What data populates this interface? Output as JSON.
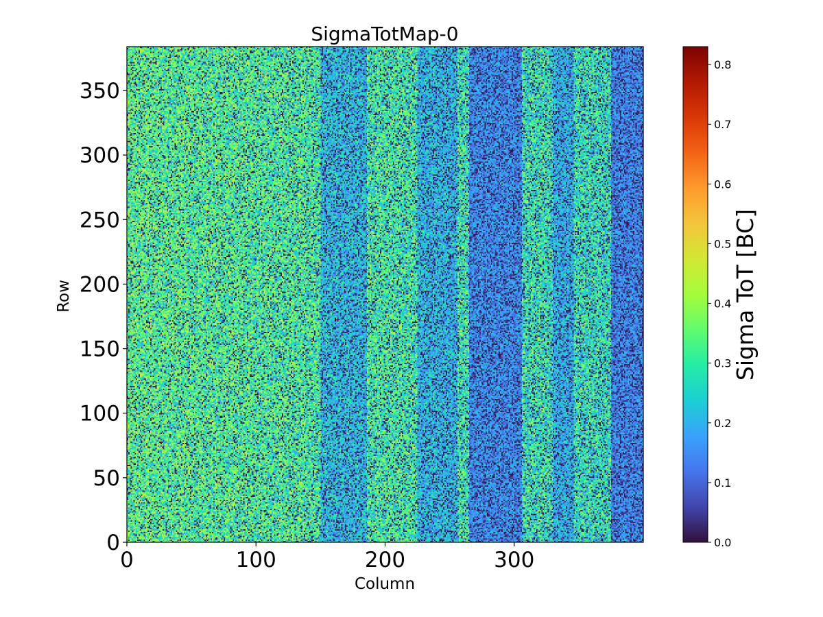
{
  "chart_data": {
    "type": "heatmap",
    "title": "SigmaTotMap-0",
    "xlabel": "Column",
    "ylabel": "Row",
    "xlim": [
      0,
      400
    ],
    "ylim": [
      0,
      384
    ],
    "x_ticks": [
      0,
      100,
      200,
      300
    ],
    "y_ticks": [
      0,
      50,
      100,
      150,
      200,
      250,
      300,
      350
    ],
    "colorbar": {
      "label": "Sigma ToT [BC]",
      "range": [
        0.0,
        0.83
      ],
      "ticks": [
        "0.0",
        "0.1",
        "0.2",
        "0.3",
        "0.4",
        "0.5",
        "0.6",
        "0.7",
        "0.8"
      ],
      "colormap": "turbo",
      "colors": [
        "#30123b",
        "#4145ab",
        "#4675ed",
        "#39a2fc",
        "#1bcfd4",
        "#24eca6",
        "#61fc6c",
        "#a4fc3b",
        "#d1e834",
        "#f3c63a",
        "#fe9b2d",
        "#f36315",
        "#d93806",
        "#b11901",
        "#7a0402"
      ]
    },
    "grid": false,
    "legend": "none",
    "value_description": "Per-pixel sigma ToT, noisy values mostly 0.0–0.45; left half (columns 0–150) mostly cyan/green ~0.25–0.45, right half darker with vertical dark bands near columns 160–180, 230–250, 270–300, 380–400",
    "bands": [
      {
        "x": [
          150,
          185
        ],
        "level": "low"
      },
      {
        "x": [
          225,
          255
        ],
        "level": "low"
      },
      {
        "x": [
          265,
          305
        ],
        "level": "very low"
      },
      {
        "x": [
          330,
          345
        ],
        "level": "low"
      },
      {
        "x": [
          375,
          400
        ],
        "level": "very low"
      }
    ]
  }
}
